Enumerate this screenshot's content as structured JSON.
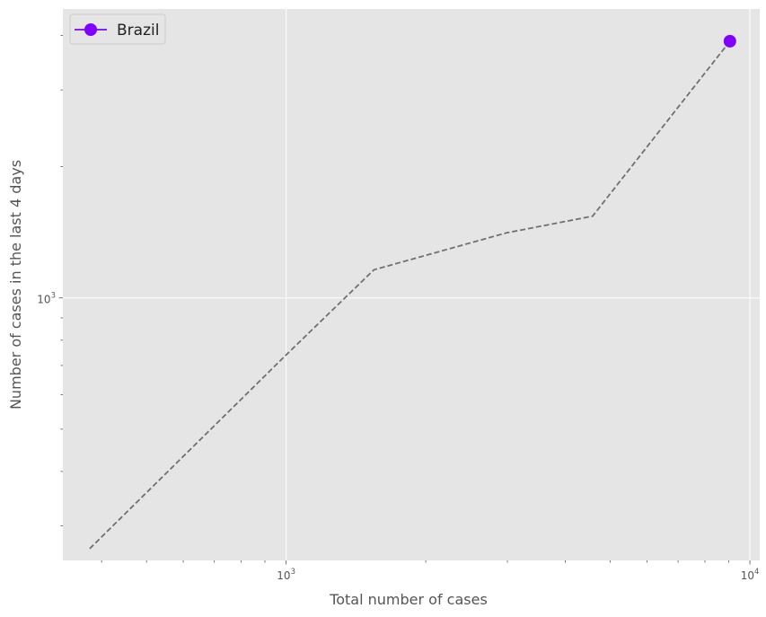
{
  "chart_data": {
    "type": "line",
    "title": "",
    "xlabel": "Total number of cases",
    "ylabel": "Number of cases in the last 4 days",
    "xscale": "log",
    "yscale": "log",
    "xlim": [
      330,
      10500
    ],
    "ylim": [
      250,
      4600
    ],
    "grid": true,
    "legend_position": "top-left",
    "x_tick_labels": [
      {
        "value": 1000,
        "base": "10",
        "exp": "3"
      },
      {
        "value": 10000,
        "base": "10",
        "exp": "4"
      }
    ],
    "y_tick_labels": [
      {
        "value": 1000,
        "base": "10",
        "exp": "3"
      }
    ],
    "series": [
      {
        "name": "Brazil",
        "color": "#7f00ff",
        "trail_color": "#707070",
        "marker": "circle",
        "x": [
          377,
          1000,
          1546,
          2985,
          4579,
          9056
        ],
        "y": [
          266,
          740,
          1160,
          1410,
          1540,
          3880
        ]
      }
    ],
    "style": {
      "background": "#e5e5e5",
      "grid_color": "#ffffff"
    }
  }
}
